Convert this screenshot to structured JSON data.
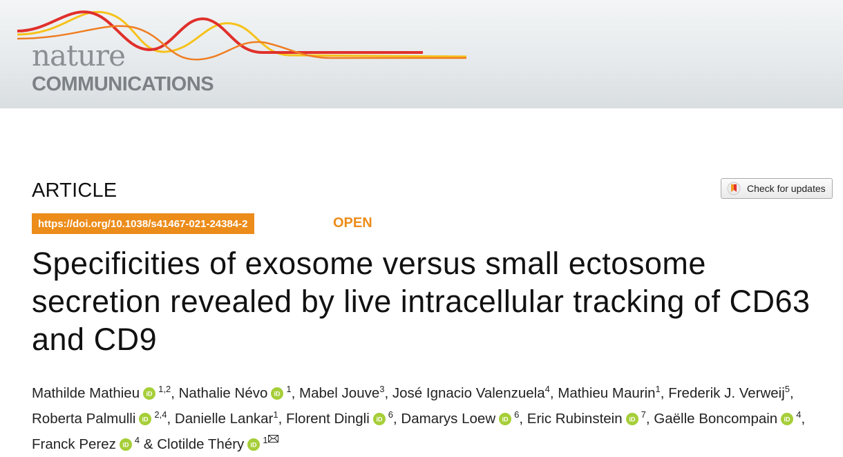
{
  "journal": {
    "name_line1": "nature",
    "name_line2": "COMMUNICATIONS"
  },
  "article_type": "ARTICLE",
  "check_for_updates": "Check for updates",
  "doi": "https://doi.org/10.1038/s41467-021-24384-2",
  "access": "OPEN",
  "title": "Specificities of exosome versus small ectosome secretion revealed by live intracellular tracking of CD63 and CD9",
  "authors": [
    {
      "name": "Mathilde Mathieu",
      "orcid": true,
      "aff": "1,2",
      "sep": ", "
    },
    {
      "name": "Nathalie Névo",
      "orcid": true,
      "aff": "1",
      "sep": ", "
    },
    {
      "name": "Mabel Jouve",
      "orcid": false,
      "aff": "3",
      "sep": ", "
    },
    {
      "name": "José Ignacio Valenzuela",
      "orcid": false,
      "aff": "4",
      "sep": ", "
    },
    {
      "name": "Mathieu Maurin",
      "orcid": false,
      "aff": "1",
      "sep": ", "
    },
    {
      "name": "Frederik J. Verweij",
      "orcid": false,
      "aff": "5",
      "sep": ", "
    },
    {
      "name": "Roberta Palmulli",
      "orcid": true,
      "aff": "2,4",
      "sep": ", "
    },
    {
      "name": "Danielle Lankar",
      "orcid": false,
      "aff": "1",
      "sep": ", "
    },
    {
      "name": "Florent Dingli",
      "orcid": true,
      "aff": "6",
      "sep": ", "
    },
    {
      "name": "Damarys Loew",
      "orcid": true,
      "aff": "6",
      "sep": ", "
    },
    {
      "name": "Eric Rubinstein",
      "orcid": true,
      "aff": "7",
      "sep": ", "
    },
    {
      "name": "Gaëlle Boncompain",
      "orcid": true,
      "aff": "4",
      "sep": ", "
    },
    {
      "name": "Franck Perez",
      "orcid": true,
      "aff": "4",
      "sep": " & "
    },
    {
      "name": "Clotilde Théry",
      "orcid": true,
      "aff": "1",
      "sep": "",
      "corresponding": true
    }
  ],
  "colors": {
    "accent_orange": "#ec8c1a",
    "orcid_green": "#a6ce39",
    "wave_red": "#e0302b",
    "wave_yellow": "#f6c21a"
  },
  "icons": {
    "orcid": "orcid-icon",
    "mail": "mail-icon",
    "check_updates": "check-updates-icon"
  }
}
